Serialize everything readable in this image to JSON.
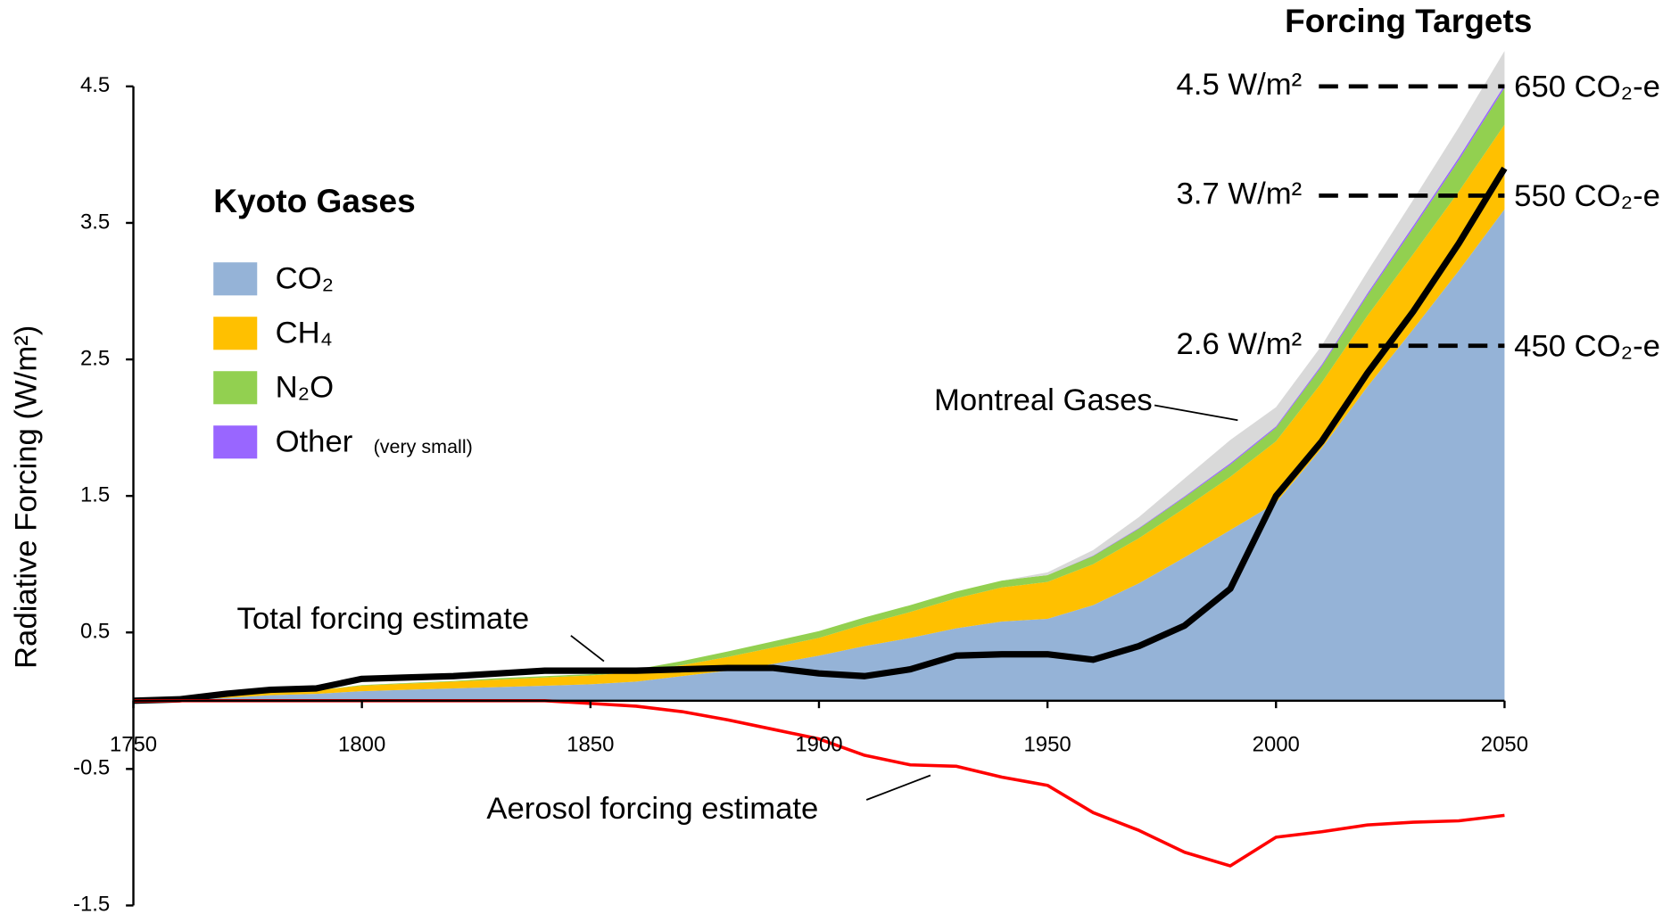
{
  "chart_data": {
    "type": "stacked_area",
    "title": "Forcing Targets",
    "legend_title": "Kyoto Gases",
    "y_label": "Radiative Forcing (W/m²)",
    "x": [
      1750,
      1760,
      1770,
      1780,
      1790,
      1800,
      1810,
      1820,
      1830,
      1840,
      1850,
      1860,
      1870,
      1880,
      1890,
      1900,
      1910,
      1920,
      1930,
      1940,
      1950,
      1960,
      1970,
      1980,
      1990,
      2000,
      2010,
      2020,
      2030,
      2040,
      2050
    ],
    "xlim": [
      1750,
      2050
    ],
    "xticks": [
      1750,
      1800,
      1850,
      1900,
      1950,
      2000,
      2050
    ],
    "ylim": [
      -1.5,
      4.5
    ],
    "yticks": [
      -1.5,
      -0.5,
      0.5,
      1.5,
      2.5,
      3.5,
      4.5
    ],
    "series": [
      {
        "name": "CO₂",
        "color": "#95b3d7",
        "legend": true,
        "values": [
          0,
          0.005,
          0.02,
          0.04,
          0.05,
          0.07,
          0.08,
          0.09,
          0.1,
          0.11,
          0.12,
          0.14,
          0.18,
          0.22,
          0.27,
          0.33,
          0.4,
          0.46,
          0.53,
          0.58,
          0.6,
          0.7,
          0.86,
          1.05,
          1.25,
          1.45,
          1.85,
          2.3,
          2.72,
          3.15,
          3.6
        ]
      },
      {
        "name": "CH₄",
        "color": "#ffc000",
        "legend": true,
        "values": [
          0,
          0.003,
          0.01,
          0.02,
          0.025,
          0.04,
          0.045,
          0.05,
          0.055,
          0.06,
          0.065,
          0.07,
          0.08,
          0.1,
          0.12,
          0.13,
          0.16,
          0.19,
          0.22,
          0.25,
          0.27,
          0.3,
          0.33,
          0.36,
          0.39,
          0.45,
          0.48,
          0.52,
          0.55,
          0.58,
          0.62
        ]
      },
      {
        "name": "N₂O",
        "color": "#92d050",
        "legend": true,
        "values": [
          0,
          0,
          0,
          0,
          0,
          0.005,
          0.005,
          0.005,
          0.01,
          0.01,
          0.01,
          0.02,
          0.03,
          0.04,
          0.045,
          0.05,
          0.05,
          0.05,
          0.05,
          0.05,
          0.05,
          0.06,
          0.07,
          0.08,
          0.09,
          0.1,
          0.12,
          0.15,
          0.19,
          0.23,
          0.27
        ]
      },
      {
        "name": "Other",
        "note": "(very small)",
        "color": "#9966ff",
        "legend": true,
        "values": [
          0,
          0,
          0,
          0,
          0,
          0,
          0,
          0,
          0,
          0,
          0,
          0,
          0,
          0,
          0,
          0,
          0,
          0,
          0,
          0,
          0,
          0.003,
          0.005,
          0.008,
          0.01,
          0.01,
          0.012,
          0.015,
          0.018,
          0.02,
          0.02
        ]
      },
      {
        "name": "Montreal Gases",
        "color": "#d9d9d9",
        "legend": false,
        "values": [
          0,
          0,
          0,
          0,
          0,
          0,
          0,
          0,
          0,
          0,
          0,
          0,
          0,
          0,
          0,
          0,
          0,
          0,
          0,
          0,
          0.02,
          0.04,
          0.08,
          0.13,
          0.17,
          0.14,
          0.14,
          0.16,
          0.19,
          0.22,
          0.25
        ]
      }
    ],
    "lines": [
      {
        "name": "Total forcing estimate",
        "color": "#000000",
        "values": [
          0,
          0.01,
          0.05,
          0.08,
          0.09,
          0.16,
          0.17,
          0.18,
          0.2,
          0.22,
          0.22,
          0.22,
          0.23,
          0.24,
          0.24,
          0.2,
          0.18,
          0.23,
          0.33,
          0.34,
          0.34,
          0.3,
          0.4,
          0.55,
          0.82,
          1.5,
          1.9,
          2.4,
          2.85,
          3.35,
          3.9
        ]
      },
      {
        "name": "Aerosol forcing estimate",
        "color": "#ff0000",
        "values": [
          0,
          0,
          0,
          0,
          0,
          0,
          0,
          0,
          0,
          0,
          -0.02,
          -0.04,
          -0.08,
          -0.14,
          -0.21,
          -0.28,
          -0.4,
          -0.47,
          -0.48,
          -0.56,
          -0.62,
          -0.82,
          -0.95,
          -1.11,
          -1.21,
          -1.0,
          -0.96,
          -0.91,
          -0.89,
          -0.88,
          -0.84
        ]
      }
    ],
    "targets": [
      {
        "value": 4.5,
        "label": "4.5 W/m²",
        "equivalent": "650 CO₂-e"
      },
      {
        "value": 3.7,
        "label": "3.7 W/m²",
        "equivalent": "550 CO₂-e"
      },
      {
        "value": 2.6,
        "label": "2.6 W/m²",
        "equivalent": "450 CO₂-e"
      }
    ]
  }
}
